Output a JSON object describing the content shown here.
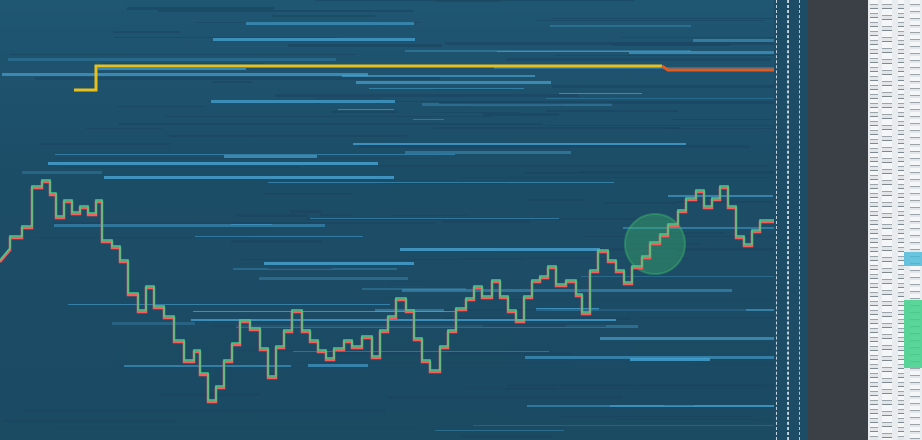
{
  "colors": {
    "background": "#1e4e68",
    "liquidity_light": "#4aa9da",
    "liquidity_dark": "#1a4560",
    "price_up": "#3fd08a",
    "price_down": "#ff5a5a",
    "level_yellow": "#e8c01e",
    "level_orange": "#e45a1e",
    "bubble_green": "#3fbf6a",
    "gap_panel": "#3b4046",
    "axis_panel": "#e8ecee"
  },
  "icons": {
    "bubble": "volume-bubble-icon"
  }
}
